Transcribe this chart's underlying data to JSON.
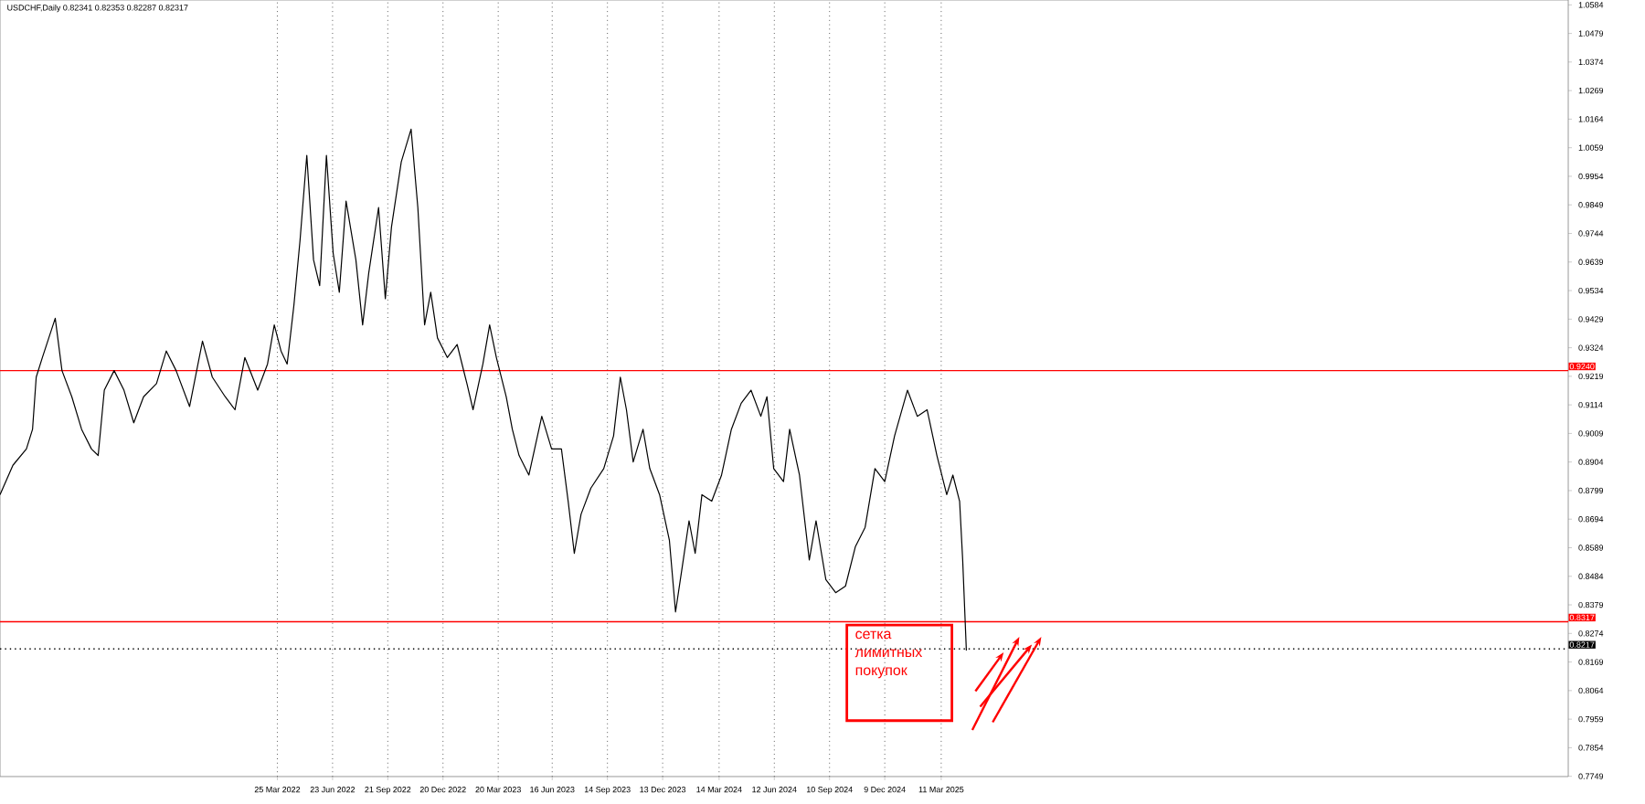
{
  "chart_data": {
    "type": "line",
    "title": "USDCHF,Daily 0.82341 0.82353 0.82287 0.82317",
    "annotations": [
      "сетка лимитных покупок"
    ],
    "x": [
      "2020-12-28",
      "2021-01-18",
      "2021-02-09",
      "2021-02-19",
      "2021-02-25",
      "2021-03-07",
      "2021-03-28",
      "2021-04-08",
      "2021-04-24",
      "2021-05-10",
      "2021-05-26",
      "2021-06-06",
      "2021-06-16",
      "2021-07-02",
      "2021-07-18",
      "2021-08-03",
      "2021-08-19",
      "2021-09-09",
      "2021-09-25",
      "2021-10-11",
      "2021-11-02",
      "2021-11-23",
      "2021-12-09",
      "2021-12-30",
      "2022-01-15",
      "2022-01-31",
      "2022-02-21",
      "2022-03-09",
      "2022-03-20",
      "2022-03-31",
      "2022-04-10",
      "2022-04-21",
      "2022-05-01",
      "2022-05-12",
      "2022-05-23",
      "2022-06-02",
      "2022-06-13",
      "2022-06-24",
      "2022-07-04",
      "2022-07-15",
      "2022-07-31",
      "2022-08-11",
      "2022-08-21",
      "2022-09-06",
      "2022-09-17",
      "2022-09-27",
      "2022-10-13",
      "2022-10-29",
      "2022-11-09",
      "2022-11-20",
      "2022-11-30",
      "2022-12-11",
      "2022-12-27",
      "2023-01-12",
      "2023-01-28",
      "2023-02-07",
      "2023-02-23",
      "2023-03-06",
      "2023-03-17",
      "2023-04-02",
      "2023-04-12",
      "2023-04-23",
      "2023-05-09",
      "2023-05-30",
      "2023-06-15",
      "2023-07-01",
      "2023-07-12",
      "2023-07-22",
      "2023-08-02",
      "2023-08-18",
      "2023-09-08",
      "2023-09-24",
      "2023-10-05",
      "2023-10-15",
      "2023-10-26",
      "2023-11-11",
      "2023-11-22",
      "2023-12-08",
      "2023-12-24",
      "2024-01-03",
      "2024-01-14",
      "2024-01-25",
      "2024-02-04",
      "2024-02-15",
      "2024-03-02",
      "2024-03-18",
      "2024-04-03",
      "2024-04-19",
      "2024-05-05",
      "2024-05-21",
      "2024-05-31",
      "2024-06-11",
      "2024-06-27",
      "2024-07-07",
      "2024-07-23",
      "2024-08-08",
      "2024-08-19",
      "2024-09-04",
      "2024-09-20",
      "2024-10-06",
      "2024-10-22",
      "2024-11-07",
      "2024-11-23",
      "2024-12-09",
      "2024-12-25",
      "2025-01-15",
      "2025-01-31",
      "2025-02-16",
      "2025-03-04",
      "2025-03-20",
      "2025-03-30",
      "2025-04-10",
      "2025-04-15",
      "2025-04-21"
    ],
    "series": [
      {
        "color": "#000000",
        "values": [
          0.8784,
          0.8892,
          0.8952,
          0.9024,
          0.9216,
          0.9288,
          0.9432,
          0.924,
          0.9144,
          0.9024,
          0.8952,
          0.8928,
          0.9168,
          0.924,
          0.9168,
          0.9048,
          0.9144,
          0.9192,
          0.9312,
          0.924,
          0.9108,
          0.9348,
          0.9216,
          0.9144,
          0.9096,
          0.9288,
          0.9168,
          0.9264,
          0.9408,
          0.9312,
          0.9264,
          0.948,
          0.9719,
          1.0031,
          0.9647,
          0.9552,
          1.0031,
          0.9671,
          0.9528,
          0.9863,
          0.9647,
          0.9408,
          0.9599,
          0.9839,
          0.9504,
          0.9767,
          1.0007,
          1.0127,
          0.9839,
          0.9408,
          0.9528,
          0.936,
          0.9288,
          0.9336,
          0.9192,
          0.9096,
          0.9264,
          0.9408,
          0.9288,
          0.9144,
          0.9024,
          0.8928,
          0.8856,
          0.9072,
          0.8952,
          0.8952,
          0.876,
          0.8568,
          0.8712,
          0.8808,
          0.888,
          0.9,
          0.9216,
          0.9096,
          0.8904,
          0.9024,
          0.888,
          0.8784,
          0.8616,
          0.8353,
          0.852,
          0.8688,
          0.8568,
          0.8784,
          0.876,
          0.8856,
          0.9024,
          0.912,
          0.9168,
          0.9072,
          0.9144,
          0.888,
          0.8832,
          0.9024,
          0.8856,
          0.8544,
          0.8688,
          0.8472,
          0.8424,
          0.8448,
          0.8592,
          0.8664,
          0.888,
          0.8832,
          0.9,
          0.9168,
          0.9072,
          0.9096,
          0.8928,
          0.8784,
          0.8856,
          0.876,
          0.8544,
          0.8211
        ]
      }
    ],
    "xlim": [
      "2020-12-28",
      "2027-12-28"
    ],
    "xticks": [
      {
        "value": "2022-03-25",
        "label": "25 Mar 2022"
      },
      {
        "value": "2022-06-23",
        "label": "23 Jun 2022"
      },
      {
        "value": "2022-09-21",
        "label": "21 Sep 2022"
      },
      {
        "value": "2022-12-20",
        "label": "20 Dec 2022"
      },
      {
        "value": "2023-03-20",
        "label": "20 Mar 2023"
      },
      {
        "value": "2023-06-16",
        "label": "16 Jun 2023"
      },
      {
        "value": "2023-09-14",
        "label": "14 Sep 2023"
      },
      {
        "value": "2023-12-13",
        "label": "13 Dec 2023"
      },
      {
        "value": "2024-03-14",
        "label": "14 Mar 2024"
      },
      {
        "value": "2024-06-12",
        "label": "12 Jun 2024"
      },
      {
        "value": "2024-09-10",
        "label": "10 Sep 2024"
      },
      {
        "value": "2024-12-09",
        "label": "9 Dec 2024"
      },
      {
        "value": "2025-03-11",
        "label": "11 Mar 2025"
      }
    ],
    "ylim": [
      0.7748,
      1.0602
    ],
    "yticks": [
      1.0584,
      1.0479,
      1.0374,
      1.0269,
      1.0164,
      1.0059,
      0.9954,
      0.9849,
      0.9744,
      0.9639,
      0.9534,
      0.9429,
      0.9324,
      0.9219,
      0.9114,
      0.9009,
      0.8904,
      0.8799,
      0.8694,
      0.8589,
      0.8484,
      0.8379,
      0.8274,
      0.8169,
      0.8064,
      0.7959,
      0.7854,
      0.7749
    ],
    "ref_lines": [
      {
        "axis": "y",
        "value": 0.924,
        "label": "0.9240",
        "color": "#ff0000"
      },
      {
        "axis": "y",
        "value": 0.8317,
        "label": "0.8317",
        "color": "#ff0000"
      },
      {
        "axis": "y",
        "value": 0.8217,
        "label": "0.8217",
        "color": "#000000",
        "line_style": "dotted"
      }
    ],
    "grid": "x",
    "marker": "none",
    "line_style": "solid"
  }
}
